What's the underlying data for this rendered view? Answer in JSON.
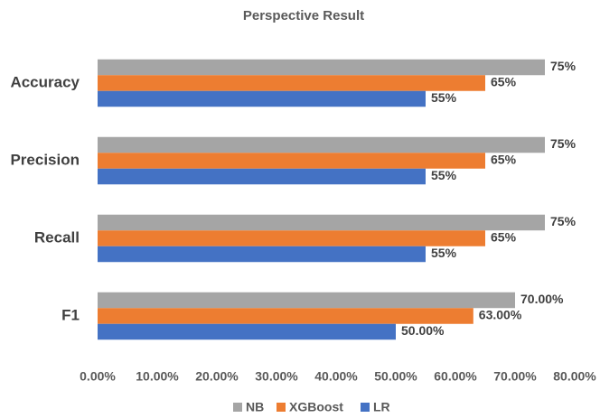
{
  "chart_data": {
    "type": "bar",
    "orientation": "horizontal",
    "title": "Perspective Result",
    "categories": [
      "Accuracy",
      "Precision",
      "Recall",
      "F1"
    ],
    "series": [
      {
        "name": "NB",
        "color": "#a5a5a5",
        "values": [
          75,
          75,
          75,
          70
        ],
        "value_labels": [
          "75%",
          "75%",
          "75%",
          "70.00%"
        ]
      },
      {
        "name": "XGBoost",
        "color": "#ed7d31",
        "values": [
          65,
          65,
          65,
          63
        ],
        "value_labels": [
          "65%",
          "65%",
          "65%",
          "63.00%"
        ]
      },
      {
        "name": "LR",
        "color": "#4472c4",
        "values": [
          55,
          55,
          55,
          50
        ],
        "value_labels": [
          "55%",
          "55%",
          "55%",
          "50.00%"
        ]
      }
    ],
    "xlim": [
      0,
      80
    ],
    "xticks": [
      {
        "value": 0,
        "label": "0.00%"
      },
      {
        "value": 10,
        "label": "10.00%"
      },
      {
        "value": 20,
        "label": "20.00%"
      },
      {
        "value": 30,
        "label": "30.00%"
      },
      {
        "value": 40,
        "label": "40.00%"
      },
      {
        "value": 50,
        "label": "50.00%"
      },
      {
        "value": 60,
        "label": "60.00%"
      },
      {
        "value": 70,
        "label": "70.00%"
      },
      {
        "value": 80,
        "label": "80.00%"
      }
    ],
    "grid": false,
    "legend": "bottom"
  }
}
